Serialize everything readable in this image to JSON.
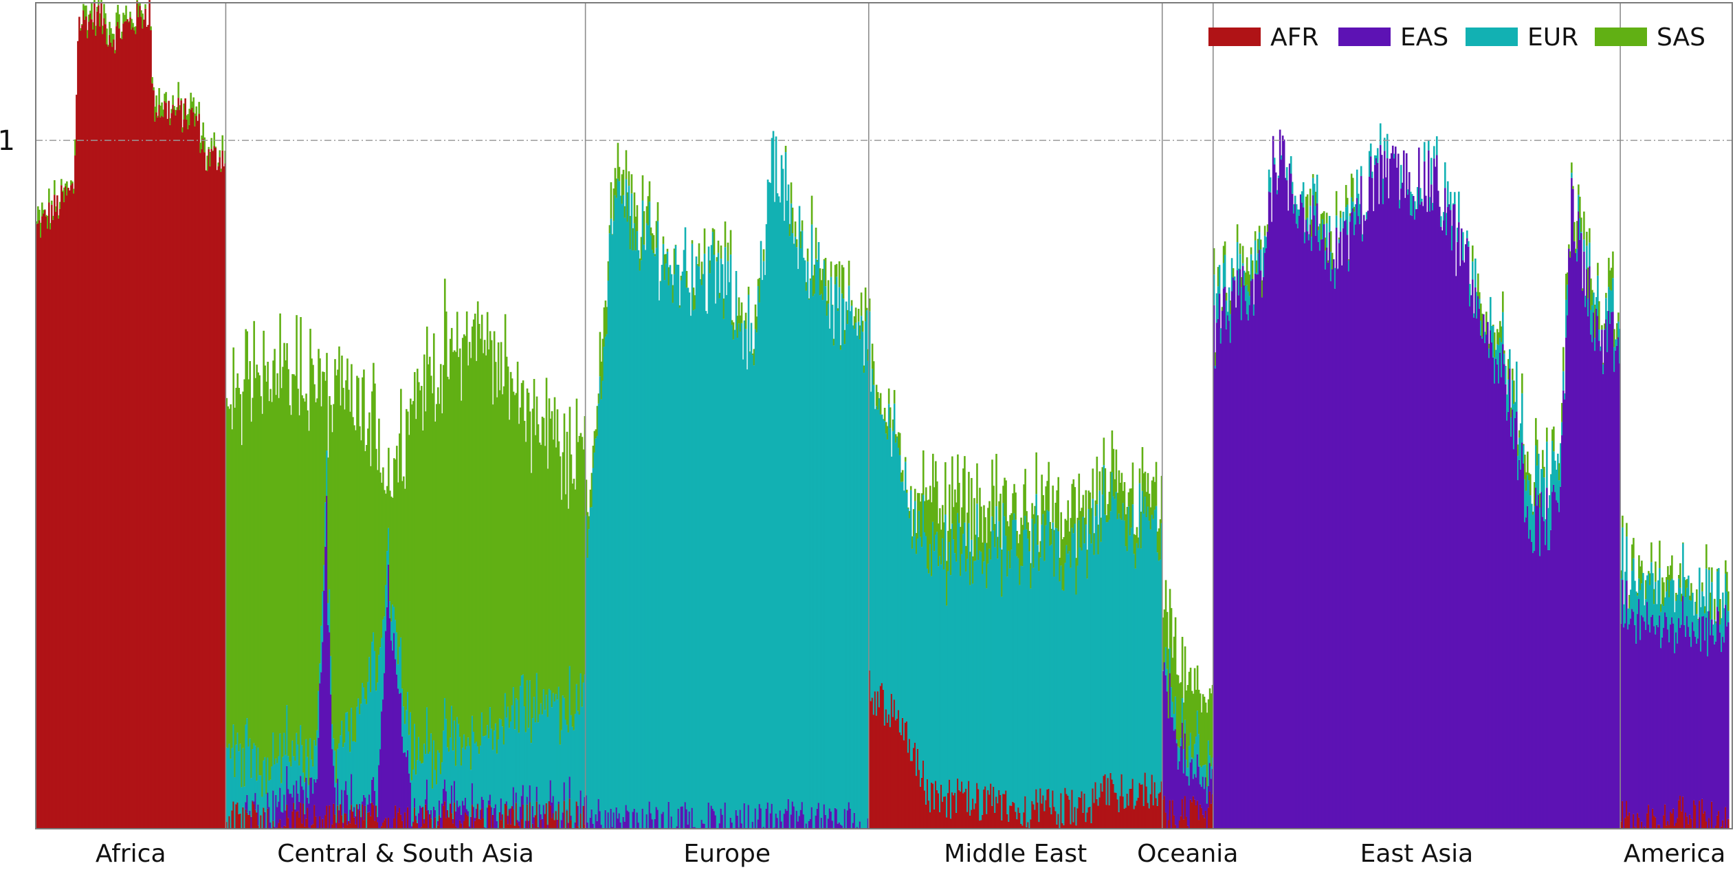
{
  "chart_data": {
    "type": "bar",
    "stacked": true,
    "title": "",
    "xlabel": "",
    "ylabel": "",
    "ylim": [
      0,
      1.2
    ],
    "yticks": [
      {
        "value": 1,
        "label": "1"
      }
    ],
    "reference_line": {
      "value": 1,
      "style": "dash-dot"
    },
    "grid": false,
    "legend_placement": "top-right",
    "series": [
      {
        "name": "AFR",
        "color": "#b01316"
      },
      {
        "name": "EAS",
        "color": "#5d12b4"
      },
      {
        "name": "EUR",
        "color": "#12b1b3"
      },
      {
        "name": "SAS",
        "color": "#61b014"
      }
    ],
    "regions": [
      {
        "label": "Africa",
        "share": 0.112,
        "profile": [
          [
            0.0,
            0.87,
            0,
            0,
            0.01,
            0.01
          ],
          [
            0.2,
            0.93,
            0,
            0,
            0.01,
            0.01
          ],
          [
            0.22,
            1.17,
            0,
            0,
            0.01,
            0.01
          ],
          [
            0.33,
            1.18,
            0,
            0,
            0.01,
            0.01
          ],
          [
            0.4,
            1.15,
            0,
            0,
            0.01,
            0.01
          ],
          [
            0.6,
            1.19,
            0,
            0,
            0.01,
            0.01
          ],
          [
            0.62,
            1.05,
            0,
            0,
            0.01,
            0.01
          ],
          [
            0.85,
            1.03,
            0,
            0,
            0.01,
            0.01
          ],
          [
            0.9,
            0.97,
            0,
            0,
            0.01,
            0.01
          ],
          [
            1.0,
            0.98,
            0,
            0,
            0.01,
            0.01
          ]
        ]
      },
      {
        "label": "Central & South Asia",
        "share": 0.212,
        "profile": [
          [
            0.0,
            0.01,
            0,
            0.1,
            0.5,
            0.02
          ],
          [
            0.1,
            0.01,
            0.01,
            0.07,
            0.58,
            0.02
          ],
          [
            0.25,
            0.01,
            0.05,
            0.05,
            0.55,
            0.02
          ],
          [
            0.28,
            0.01,
            0.4,
            0.05,
            0.15,
            0.02
          ],
          [
            0.3,
            0.01,
            0.02,
            0.05,
            0.55,
            0.02
          ],
          [
            0.42,
            0.01,
            0.02,
            0.2,
            0.35,
            0.02
          ],
          [
            0.45,
            0.01,
            0.33,
            0.05,
            0.1,
            0.02
          ],
          [
            0.52,
            0.01,
            0.02,
            0.08,
            0.52,
            0.02
          ],
          [
            0.7,
            0.01,
            0.01,
            0.1,
            0.6,
            0.02
          ],
          [
            0.82,
            0.01,
            0.01,
            0.15,
            0.45,
            0.02
          ],
          [
            1.0,
            0.02,
            0.01,
            0.15,
            0.35,
            0.02
          ]
        ]
      },
      {
        "label": "Europe",
        "share": 0.167,
        "profile": [
          [
            0.0,
            0,
            0.02,
            0.38,
            0.04,
            0.02
          ],
          [
            0.1,
            0,
            0.01,
            0.9,
            0.03,
            0.02
          ],
          [
            0.3,
            0,
            0.01,
            0.8,
            0.01,
            0.02
          ],
          [
            0.5,
            0,
            0.01,
            0.78,
            0.01,
            0.02
          ],
          [
            0.6,
            0,
            0.01,
            0.68,
            0.01,
            0.02
          ],
          [
            0.66,
            0,
            0.01,
            0.97,
            0,
            0.02
          ],
          [
            0.75,
            0,
            0.02,
            0.85,
            0.01,
            0.02
          ],
          [
            0.85,
            0,
            0.01,
            0.75,
            0.02,
            0.02
          ],
          [
            1.0,
            0,
            0.01,
            0.7,
            0.02,
            0.02
          ]
        ]
      },
      {
        "label": "Middle East",
        "share": 0.173,
        "profile": [
          [
            0.0,
            0.2,
            0,
            0.48,
            0.01,
            0.02
          ],
          [
            0.12,
            0.15,
            0,
            0.35,
            0.01,
            0.02
          ],
          [
            0.2,
            0.05,
            0,
            0.35,
            0.08,
            0.02
          ],
          [
            0.5,
            0.03,
            0,
            0.38,
            0.05,
            0.02
          ],
          [
            0.75,
            0.03,
            0,
            0.38,
            0.05,
            0.02
          ],
          [
            0.8,
            0.05,
            0,
            0.4,
            0.04,
            0.02
          ],
          [
            1.0,
            0.06,
            0,
            0.38,
            0.04,
            0.02
          ]
        ]
      },
      {
        "label": "Oceania",
        "share": 0.03,
        "profile": [
          [
            0.0,
            0.02,
            0.2,
            0.01,
            0.08,
            0.02
          ],
          [
            0.5,
            0.02,
            0.05,
            0.03,
            0.1,
            0.02
          ],
          [
            1.0,
            0.03,
            0.05,
            0.04,
            0.08,
            0.02
          ]
        ]
      },
      {
        "label": "East Asia",
        "share": 0.24,
        "profile": [
          [
            0.0,
            0,
            0.72,
            0.02,
            0.01,
            0.02
          ],
          [
            0.12,
            0,
            0.8,
            0.02,
            0.01,
            0.02
          ],
          [
            0.15,
            0,
            0.98,
            0.01,
            0,
            0.02
          ],
          [
            0.3,
            0,
            0.82,
            0.02,
            0.01,
            0.02
          ],
          [
            0.4,
            0,
            0.95,
            0.01,
            0,
            0.02
          ],
          [
            0.55,
            0,
            0.93,
            0.01,
            0,
            0.02
          ],
          [
            0.72,
            0,
            0.65,
            0.03,
            0.01,
            0.02
          ],
          [
            0.78,
            0,
            0.45,
            0.06,
            0.01,
            0.02
          ],
          [
            0.85,
            0,
            0.45,
            0.06,
            0.01,
            0.02
          ],
          [
            0.88,
            0,
            0.9,
            0.01,
            0.01,
            0.02
          ],
          [
            0.95,
            0,
            0.7,
            0.03,
            0.02,
            0.02
          ],
          [
            1.0,
            0,
            0.7,
            0.03,
            0.02,
            0.02
          ]
        ]
      },
      {
        "label": "America",
        "share": 0.064,
        "profile": [
          [
            0.0,
            0.01,
            0.3,
            0.05,
            0.01,
            0.02
          ],
          [
            0.5,
            0.02,
            0.27,
            0.05,
            0.01,
            0.02
          ],
          [
            1.0,
            0.01,
            0.28,
            0.04,
            0.01,
            0.02
          ]
        ]
      }
    ]
  }
}
